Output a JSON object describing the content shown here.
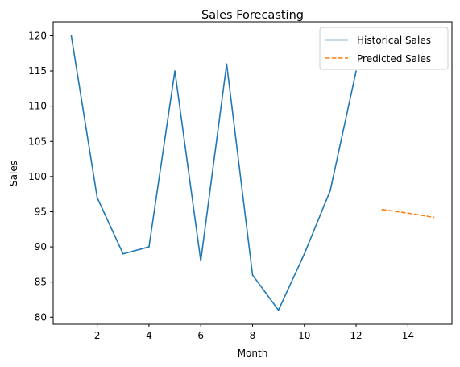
{
  "chart_data": {
    "type": "line",
    "title": "Sales Forecasting",
    "xlabel": "Month",
    "ylabel": "Sales",
    "xlim": [
      0.3,
      15.7
    ],
    "ylim": [
      79,
      122
    ],
    "xticks": [
      2,
      4,
      6,
      8,
      10,
      12,
      14
    ],
    "yticks": [
      80,
      85,
      90,
      95,
      100,
      105,
      110,
      115,
      120
    ],
    "grid": false,
    "legend_position": "top-right",
    "series": [
      {
        "name": "Historical Sales",
        "color": "#1f77b4",
        "style": "solid",
        "x": [
          1,
          2,
          3,
          4,
          5,
          6,
          7,
          8,
          9,
          10,
          11,
          12
        ],
        "y": [
          120,
          97,
          89,
          90,
          115,
          88,
          116,
          86,
          81,
          89,
          98,
          115
        ]
      },
      {
        "name": "Predicted Sales",
        "color": "#ff7f0e",
        "style": "dashed",
        "x": [
          13,
          14,
          15
        ],
        "y": [
          95.3,
          94.8,
          94.2
        ]
      }
    ]
  }
}
